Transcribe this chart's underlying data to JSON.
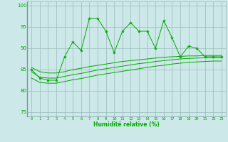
{
  "xlabel": "Humidité relative (%)",
  "x": [
    0,
    1,
    2,
    3,
    4,
    5,
    6,
    7,
    8,
    9,
    10,
    11,
    12,
    13,
    14,
    15,
    16,
    17,
    18,
    19,
    20,
    21,
    22,
    23
  ],
  "y_jagged": [
    85,
    83,
    82.5,
    82.5,
    88,
    91.5,
    89.5,
    97,
    97,
    94,
    89,
    94,
    96,
    94,
    94,
    90,
    96.5,
    92.5,
    88,
    90.5,
    90,
    88,
    88,
    88
  ],
  "y_line1": [
    85.5,
    84.5,
    84.2,
    84.2,
    84.5,
    85.0,
    85.3,
    85.7,
    86.0,
    86.3,
    86.6,
    86.9,
    87.1,
    87.3,
    87.5,
    87.7,
    87.9,
    88.0,
    88.1,
    88.2,
    88.2,
    88.3,
    88.3,
    88.3
  ],
  "y_line2": [
    84.5,
    83.2,
    83.0,
    83.0,
    83.4,
    83.8,
    84.1,
    84.5,
    84.9,
    85.2,
    85.5,
    85.8,
    86.1,
    86.4,
    86.6,
    86.9,
    87.1,
    87.3,
    87.5,
    87.6,
    87.7,
    87.8,
    87.8,
    87.8
  ],
  "y_line3": [
    83.0,
    82.0,
    81.8,
    81.8,
    82.2,
    82.6,
    82.9,
    83.3,
    83.7,
    84.0,
    84.3,
    84.6,
    84.9,
    85.2,
    85.5,
    85.8,
    86.0,
    86.3,
    86.5,
    86.7,
    86.8,
    86.9,
    87.0,
    87.0
  ],
  "line_color": "#00aa00",
  "bg_color": "#cce8e8",
  "grid_color": "#99bbbb",
  "ylim": [
    74,
    101
  ],
  "yticks": [
    75,
    80,
    85,
    90,
    95,
    100
  ],
  "xlim": [
    -0.5,
    23.5
  ]
}
